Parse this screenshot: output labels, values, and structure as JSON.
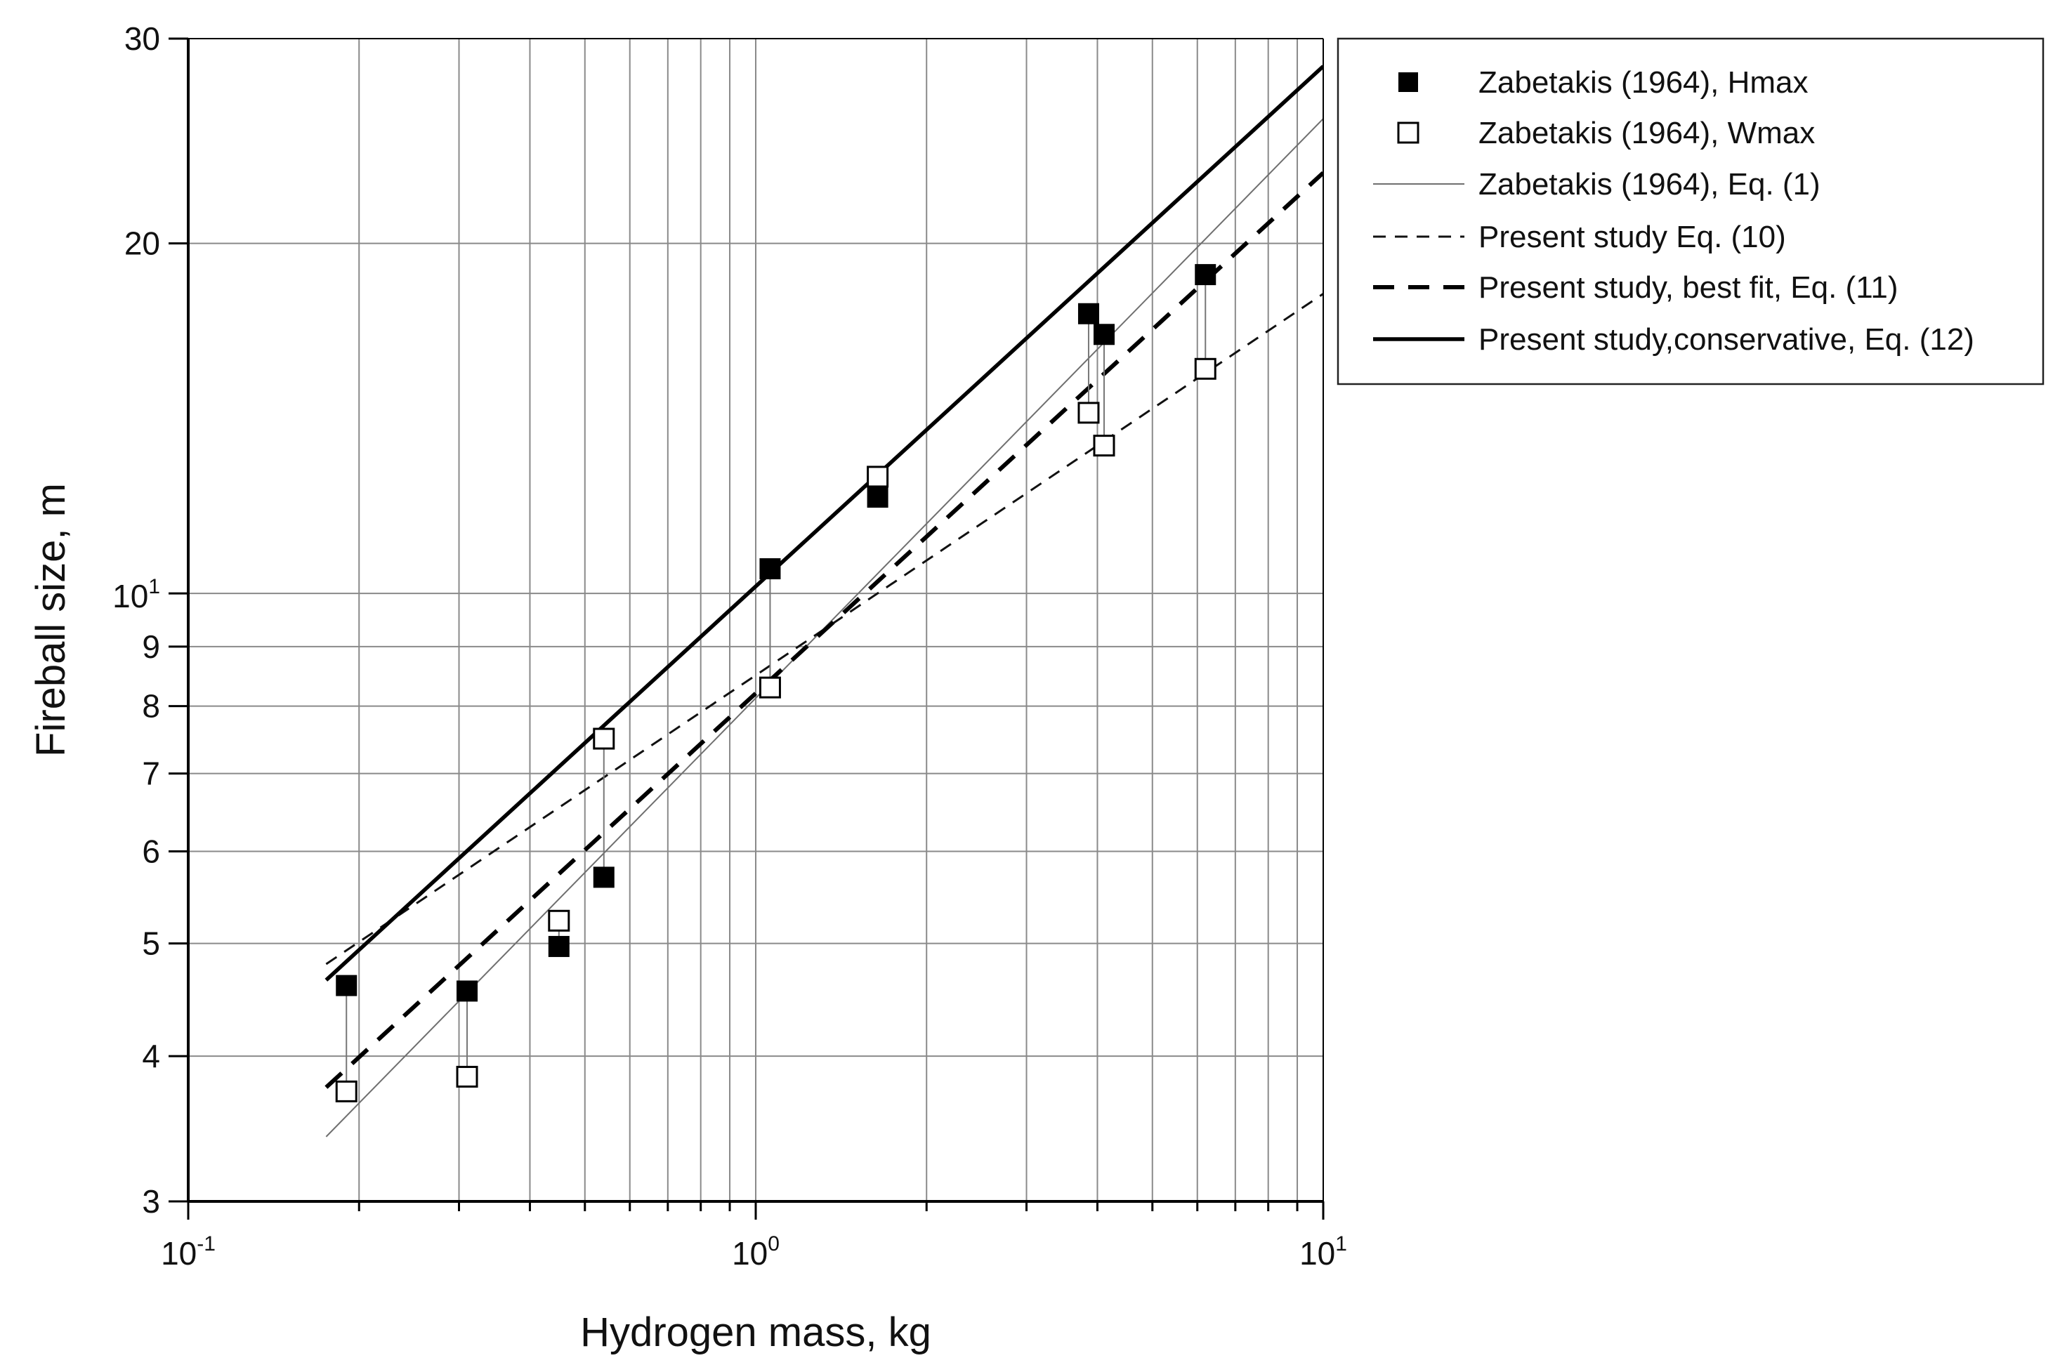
{
  "chart_data": {
    "type": "scatter",
    "xlabel": "Hydrogen mass, kg",
    "ylabel": "Fireball size, m",
    "xscale": "log",
    "yscale": "log",
    "xlim": [
      0.1,
      10
    ],
    "ylim": [
      3,
      30
    ],
    "grid": true,
    "legend_position": "top-right (outside plot)",
    "x_ticks": [
      {
        "base": "10",
        "exp": "-1",
        "value": 0.1
      },
      {
        "base": "10",
        "exp": "0",
        "value": 1
      },
      {
        "base": "10",
        "exp": "1",
        "value": 10
      }
    ],
    "y_ticks": [
      {
        "label": "3",
        "value": 3
      },
      {
        "label": "4",
        "value": 4
      },
      {
        "label": "5",
        "value": 5
      },
      {
        "label": "6",
        "value": 6
      },
      {
        "label": "7",
        "value": 7
      },
      {
        "label": "8",
        "value": 8
      },
      {
        "label": "9",
        "value": 9
      },
      {
        "base": "10",
        "exp": "1",
        "value": 10
      },
      {
        "label": "20",
        "value": 20
      },
      {
        "label": "30",
        "value": 30
      }
    ],
    "series": [
      {
        "name": "Zabetakis (1964), Hmax",
        "kind": "scatter",
        "marker": "filled-square",
        "points": [
          [
            0.19,
            4.6
          ],
          [
            0.31,
            4.55
          ],
          [
            0.45,
            4.97
          ],
          [
            0.54,
            5.7
          ],
          [
            1.06,
            10.5
          ],
          [
            1.64,
            12.1
          ],
          [
            3.86,
            17.4
          ],
          [
            4.11,
            16.7
          ],
          [
            6.2,
            18.8
          ]
        ]
      },
      {
        "name": "Zabetakis (1964), Wmax",
        "kind": "scatter",
        "marker": "open-square",
        "points": [
          [
            0.19,
            3.73
          ],
          [
            0.31,
            3.84
          ],
          [
            0.45,
            5.23
          ],
          [
            0.54,
            7.5
          ],
          [
            1.06,
            8.3
          ],
          [
            1.64,
            12.6
          ],
          [
            3.86,
            14.3
          ],
          [
            4.11,
            13.4
          ],
          [
            6.2,
            15.6
          ]
        ]
      },
      {
        "name": "Zabetakis (1964), Eq. (1)",
        "kind": "line",
        "style": "thin-solid",
        "points": [
          [
            0.175,
            3.41
          ],
          [
            10,
            25.6
          ]
        ]
      },
      {
        "name": "Present study Eq. (10)",
        "kind": "line",
        "style": "thin-dashed",
        "points": [
          [
            0.175,
            4.8
          ],
          [
            10,
            18.1
          ]
        ]
      },
      {
        "name": "Present study, best fit, Eq. (11)",
        "kind": "line",
        "style": "thick-dashed",
        "points": [
          [
            0.175,
            3.76
          ],
          [
            10,
            23.0
          ]
        ]
      },
      {
        "name": "Present study,conservative, Eq. (12)",
        "kind": "line",
        "style": "thick-solid",
        "points": [
          [
            0.175,
            4.65
          ],
          [
            10,
            28.4
          ]
        ]
      }
    ]
  }
}
